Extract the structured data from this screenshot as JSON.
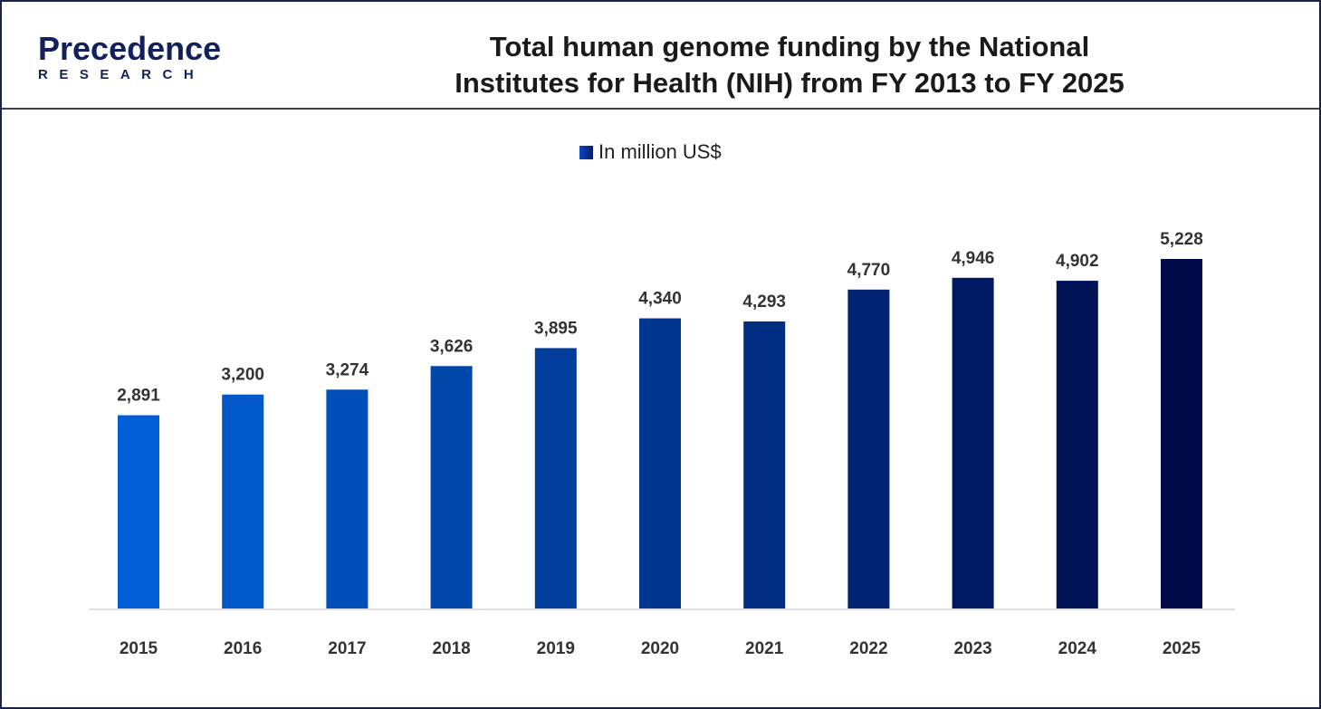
{
  "logo": {
    "text_top": "Precedence",
    "text_bottom": "RESEARCH"
  },
  "header": {
    "title_line1": "Total human genome funding by the National",
    "title_line2": "Institutes for Health (NIH) from FY 2013 to FY 2025"
  },
  "chart_data": {
    "type": "bar",
    "title": "Total human genome funding by the National Institutes for Health (NIH) from FY 2013 to FY 2025",
    "categories": [
      "2015",
      "2016",
      "2017",
      "2018",
      "2019",
      "2020",
      "2021",
      "2022",
      "2023",
      "2024",
      "2025"
    ],
    "series": [
      {
        "name": "In million US$",
        "values": [
          2891,
          3200,
          3274,
          3626,
          3895,
          4340,
          4293,
          4770,
          4946,
          4902,
          5228
        ]
      }
    ],
    "value_labels": [
      "2,891",
      "3,200",
      "3,274",
      "3,626",
      "3,895",
      "4,340",
      "4,293",
      "4,770",
      "4,946",
      "4,902",
      "5,228"
    ],
    "ylim": [
      0,
      5228
    ],
    "grid": false,
    "legend_position": "top-center",
    "colors": {
      "start": "#005fd6",
      "end": "#000a48"
    }
  }
}
